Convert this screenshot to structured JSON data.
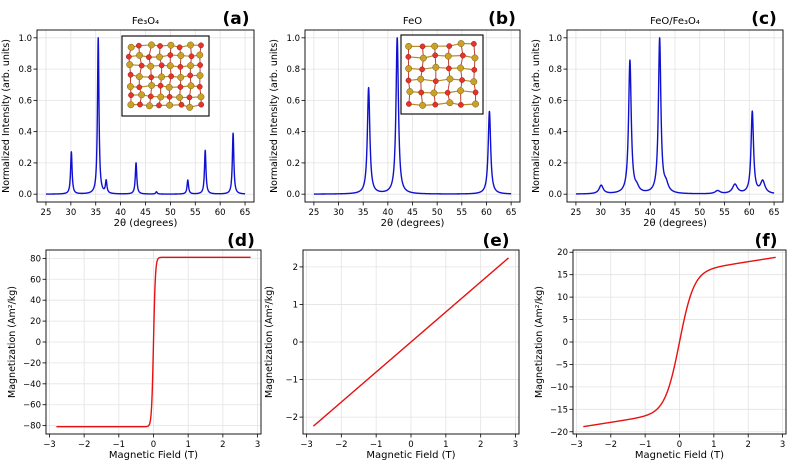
{
  "figure": {
    "panel_labels": [
      "(a)",
      "(b)",
      "(c)",
      "(d)",
      "(e)",
      "(f)"
    ],
    "titles": [
      "Fe₃O₄",
      "FeO",
      "FeO/Fe₃O₄"
    ],
    "xrd_xlabel": "2θ (degrees)",
    "xrd_ylabel": "Normalized Intensity (arb. units)",
    "mag_xlabel": "Magnetic Field (T)",
    "mag_ylabel": "Magnetization (Am²/kg)",
    "xrd_color": "#1010d0",
    "mag_color": "#e81010",
    "inset_atom_colors": [
      "#e8332a",
      "#c9a227"
    ]
  },
  "chart_data": [
    {
      "type": "line",
      "panel": "(a)",
      "title": "Fe₃O₄",
      "xlabel": "2θ (degrees)",
      "ylabel": "Normalized Intensity (arb. units)",
      "xlim": [
        23.2,
        66.8
      ],
      "ylim": [
        -0.05,
        1.05
      ],
      "xticks": [
        25,
        30,
        35,
        40,
        45,
        50,
        55,
        60,
        65
      ],
      "yticks": [
        0.0,
        0.2,
        0.4,
        0.6,
        0.8,
        1.0
      ],
      "tick_labels_x": [
        "25",
        "30",
        "35",
        "40",
        "45",
        "50",
        "55",
        "60",
        "65"
      ],
      "tick_labels_y": [
        "0.0",
        "0.2",
        "0.4",
        "0.6",
        "0.8",
        "1.0"
      ],
      "grid": true,
      "peaks": [
        {
          "x": 30.1,
          "y": 0.27
        },
        {
          "x": 35.5,
          "y": 1.0
        },
        {
          "x": 37.1,
          "y": 0.08
        },
        {
          "x": 43.1,
          "y": 0.2
        },
        {
          "x": 47.2,
          "y": 0.015
        },
        {
          "x": 53.5,
          "y": 0.09
        },
        {
          "x": 57.0,
          "y": 0.28
        },
        {
          "x": 62.6,
          "y": 0.39
        }
      ],
      "baseline": 0.0,
      "peak_width": 0.18
    },
    {
      "type": "line",
      "panel": "(b)",
      "title": "FeO",
      "xlabel": "2θ (degrees)",
      "ylabel": "Normalized Intensity (arb. units)",
      "xlim": [
        23.2,
        66.8
      ],
      "ylim": [
        -0.05,
        1.05
      ],
      "xticks": [
        25,
        30,
        35,
        40,
        45,
        50,
        55,
        60,
        65
      ],
      "yticks": [
        0.0,
        0.2,
        0.4,
        0.6,
        0.8,
        1.0
      ],
      "tick_labels_x": [
        "25",
        "30",
        "35",
        "40",
        "45",
        "50",
        "55",
        "60",
        "65"
      ],
      "tick_labels_y": [
        "0.0",
        "0.2",
        "0.4",
        "0.6",
        "0.8",
        "1.0"
      ],
      "grid": true,
      "peaks": [
        {
          "x": 36.1,
          "y": 0.68
        },
        {
          "x": 41.9,
          "y": 1.0
        },
        {
          "x": 60.6,
          "y": 0.53
        }
      ],
      "baseline": 0.0,
      "peak_width": 0.3
    },
    {
      "type": "line",
      "panel": "(c)",
      "title": "FeO/Fe₃O₄",
      "xlabel": "2θ (degrees)",
      "ylabel": "Normalized Intensity (arb. units)",
      "xlim": [
        23.2,
        66.8
      ],
      "ylim": [
        -0.05,
        1.05
      ],
      "xticks": [
        25,
        30,
        35,
        40,
        45,
        50,
        55,
        60,
        65
      ],
      "yticks": [
        0.0,
        0.2,
        0.4,
        0.6,
        0.8,
        1.0
      ],
      "tick_labels_x": [
        "25",
        "30",
        "35",
        "40",
        "45",
        "50",
        "55",
        "60",
        "65"
      ],
      "tick_labels_y": [
        "0.0",
        "0.2",
        "0.4",
        "0.6",
        "0.8",
        "1.0"
      ],
      "grid": true,
      "peaks": [
        {
          "x": 30.1,
          "y": 0.055,
          "w": 0.5
        },
        {
          "x": 35.9,
          "y": 0.86,
          "w": 0.32
        },
        {
          "x": 37.3,
          "y": 0.03,
          "w": 0.5
        },
        {
          "x": 41.9,
          "y": 1.0,
          "w": 0.3
        },
        {
          "x": 43.2,
          "y": 0.05,
          "w": 0.55
        },
        {
          "x": 53.6,
          "y": 0.02,
          "w": 0.6
        },
        {
          "x": 57.1,
          "y": 0.06,
          "w": 0.6
        },
        {
          "x": 60.6,
          "y": 0.53,
          "w": 0.3
        },
        {
          "x": 62.7,
          "y": 0.08,
          "w": 0.55
        }
      ],
      "baseline": 0.0
    },
    {
      "type": "line",
      "panel": "(d)",
      "xlabel": "Magnetic Field (T)",
      "ylabel": "Magnetization (Am²/kg)",
      "xlim": [
        -3.1,
        3.1
      ],
      "ylim": [
        -88,
        88
      ],
      "xticks": [
        -3,
        -2,
        -1,
        0,
        1,
        2,
        3
      ],
      "yticks": [
        -80,
        -60,
        -40,
        -20,
        0,
        20,
        40,
        60,
        80
      ],
      "tick_labels_x": [
        "−3",
        "−2",
        "−1",
        "0",
        "1",
        "2",
        "3"
      ],
      "tick_labels_y": [
        "−80",
        "−60",
        "−40",
        "−20",
        "0",
        "20",
        "40",
        "60",
        "80"
      ],
      "grid": true,
      "x_range": [
        -2.8,
        2.8
      ],
      "model": "tanh",
      "Ms": 81,
      "H0": 0.055
    },
    {
      "type": "line",
      "panel": "(e)",
      "xlabel": "Magnetic Field (T)",
      "ylabel": "Magnetization (Am²/kg)",
      "xlim": [
        -3.1,
        3.1
      ],
      "ylim": [
        -2.45,
        2.45
      ],
      "xticks": [
        -3,
        -2,
        -1,
        0,
        1,
        2,
        3
      ],
      "yticks": [
        -2,
        -1,
        0,
        1,
        2
      ],
      "tick_labels_x": [
        "−3",
        "−2",
        "−1",
        "0",
        "1",
        "2",
        "3"
      ],
      "tick_labels_y": [
        "−2",
        "−1",
        "0",
        "1",
        "2"
      ],
      "grid": true,
      "x_range": [
        -2.8,
        2.8
      ],
      "model": "linear",
      "slope": 0.8
    },
    {
      "type": "line",
      "panel": "(f)",
      "xlabel": "Magnetic Field (T)",
      "ylabel": "Magnetization (Am²/kg)",
      "xlim": [
        -3.1,
        3.1
      ],
      "ylim": [
        -20.5,
        20.5
      ],
      "xticks": [
        -3,
        -2,
        -1,
        0,
        1,
        2,
        3
      ],
      "yticks": [
        -20,
        -15,
        -10,
        -5,
        0,
        5,
        10,
        15,
        20
      ],
      "tick_labels_x": [
        "−3",
        "−2",
        "−1",
        "0",
        "1",
        "2",
        "3"
      ],
      "tick_labels_y": [
        "−20",
        "−15",
        "−10",
        "−5",
        "0",
        "5",
        "10",
        "15",
        "20"
      ],
      "grid": true,
      "x_range": [
        -2.8,
        2.8
      ],
      "model": "tanh+linear",
      "Ms": 15.5,
      "H0": 0.42,
      "slope": 1.2
    }
  ]
}
